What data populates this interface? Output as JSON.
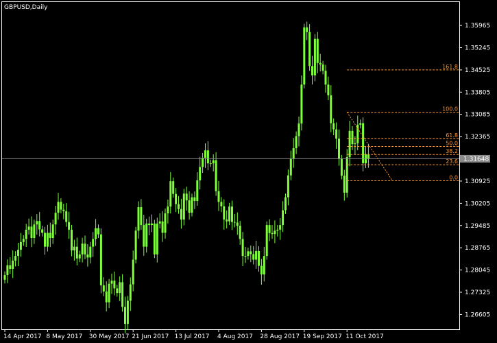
{
  "window": {
    "title": "GBPUSD,Daily"
  },
  "chart_data": {
    "type": "candlestick",
    "symbol": "GBPUSD",
    "timeframe": "Daily",
    "colors": {
      "background": "#000000",
      "axis": "#ffffff",
      "candle": "#7fff3a",
      "current_price_line": "#8a8a8a",
      "fib_level": "#ff9933",
      "price_tag_bg": "#8a8a8a"
    },
    "y_ticks": [
      "1.35965",
      "1.35245",
      "1.34525",
      "1.33805",
      "1.33085",
      "1.32365",
      "1.31645",
      "1.30925",
      "1.30205",
      "1.29485",
      "1.28765",
      "1.28045",
      "1.27325",
      "1.26605"
    ],
    "y_range": [
      1.2617,
      1.367
    ],
    "x_ticks": [
      {
        "label": "14 Apr 2017",
        "bar": 0
      },
      {
        "label": "8 May 2017",
        "bar": 16
      },
      {
        "label": "30 May 2017",
        "bar": 32
      },
      {
        "label": "21 Jun 2017",
        "bar": 48
      },
      {
        "label": "13 Jul 2017",
        "bar": 64
      },
      {
        "label": "4 Aug 2017",
        "bar": 80
      },
      {
        "label": "28 Aug 2017",
        "bar": 96
      },
      {
        "label": "19 Sep 2017",
        "bar": 112
      },
      {
        "label": "11 Oct 2017",
        "bar": 128
      }
    ],
    "current_price": {
      "label": "1.31648",
      "value": 1.31648
    },
    "fibonacci": {
      "start_bar": 128,
      "end_bar": 145,
      "levels": [
        {
          "label": "161.8",
          "value": 1.34525
        },
        {
          "label": "100.0",
          "value": 1.33155
        },
        {
          "label": "61.8",
          "value": 1.32305
        },
        {
          "label": "50.0",
          "value": 1.32045
        },
        {
          "label": "38.2",
          "value": 1.31785
        },
        {
          "label": "23.6",
          "value": 1.31455
        },
        {
          "label": "0.0",
          "value": 1.30935
        }
      ]
    },
    "closes": [
      1.2788,
      1.282,
      1.2808,
      1.2835,
      1.285,
      1.287,
      1.2895,
      1.2905,
      1.2935,
      1.2945,
      1.2908,
      1.2952,
      1.2963,
      1.2936,
      1.2925,
      1.288,
      1.2925,
      1.2908,
      1.2952,
      1.299,
      1.3025,
      1.3,
      1.2995,
      1.296,
      1.2935,
      1.2868,
      1.288,
      1.2842,
      1.2855,
      1.289,
      1.2855,
      1.2845,
      1.288,
      1.2905,
      1.294,
      1.292,
      1.2755,
      1.2735,
      1.27,
      1.276,
      1.277,
      1.2745,
      1.273,
      1.2765,
      1.2685,
      1.263,
      1.2705,
      1.2758,
      1.2838,
      1.2932,
      1.3008,
      1.295,
      1.288,
      1.2955,
      1.295,
      1.2955,
      1.2855,
      1.2955,
      1.2962,
      1.2925,
      1.2988,
      1.301,
      1.3092,
      1.3051,
      1.3018,
      1.3002,
      1.2968,
      1.3052,
      1.303,
      1.299,
      1.304,
      1.3028,
      1.3095,
      1.3138,
      1.3168,
      1.3192,
      1.315,
      1.315,
      1.316,
      1.306,
      1.3025,
      1.3011,
      1.2968,
      1.2962,
      1.301,
      1.296,
      1.2958,
      1.2948,
      1.2905,
      1.285,
      1.285,
      1.2865,
      1.2856,
      1.2838,
      1.2866,
      1.2818,
      1.279,
      1.285,
      1.295,
      1.2924,
      1.2921,
      1.2932,
      1.2935,
      1.295,
      1.2998,
      1.304,
      1.3111,
      1.3165,
      1.3199,
      1.3238,
      1.3279,
      1.3405,
      1.359,
      1.3575,
      1.3465,
      1.3435,
      1.3553,
      1.3475,
      1.347,
      1.345,
      1.3405,
      1.337,
      1.328,
      1.326,
      1.323,
      1.3165,
      1.311,
      1.3055,
      1.317,
      1.3255,
      1.3212,
      1.3215,
      1.3275,
      1.328,
      1.315,
      1.318,
      1.3165
    ]
  }
}
